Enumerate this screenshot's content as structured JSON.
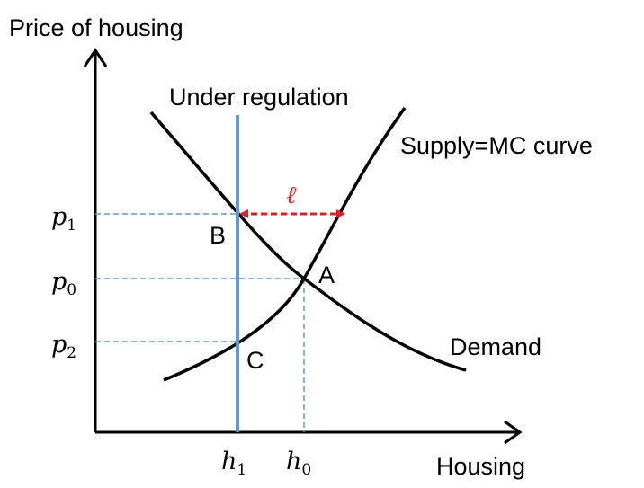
{
  "axes": {
    "y_label": "Price of housing",
    "x_label": "Housing"
  },
  "curves": {
    "regulation_label": "Under regulation",
    "supply_label": "Supply=MC curve",
    "demand_label": "Demand"
  },
  "points": {
    "A": "A",
    "B": "B",
    "C": "C"
  },
  "prices": {
    "p1": {
      "base": "p",
      "sub": "1"
    },
    "p0": {
      "base": "p",
      "sub": "0"
    },
    "p2": {
      "base": "p",
      "sub": "2"
    }
  },
  "quantities": {
    "h1": {
      "base": "h",
      "sub": "1"
    },
    "h0": {
      "base": "h",
      "sub": "0"
    }
  },
  "gap_label": "ℓ",
  "colors": {
    "axis": "#000000",
    "curves": "#000000",
    "regulation_line": "#5b9bd5",
    "guide_dash": "#5b9bd5",
    "gap_arrow": "#e02020"
  }
}
